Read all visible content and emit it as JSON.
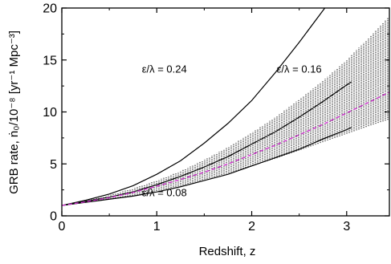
{
  "chart_data": {
    "type": "line",
    "xlabel": "Redshift,  z",
    "ylabel": "GRB rate,  ṅ₀/10⁻⁸ [yr⁻¹ Mpc⁻³]",
    "xlim": [
      0,
      3.45
    ],
    "ylim": [
      0,
      20
    ],
    "x_ticks": [
      0,
      1,
      2,
      3
    ],
    "y_ticks": [
      0,
      5,
      10,
      15,
      20
    ],
    "x_tick_labels": [
      "0",
      "1",
      "2",
      "3"
    ],
    "y_tick_labels": [
      "0",
      "5",
      "10",
      "15",
      "20"
    ],
    "grid": false,
    "series": [
      {
        "label": "ε/λ = 0.24",
        "color": "#000000",
        "style": "solid",
        "x": [
          0,
          0.25,
          0.5,
          0.75,
          1.0,
          1.25,
          1.5,
          1.75,
          2.0,
          2.25,
          2.5,
          2.77
        ],
        "y": [
          1.0,
          1.5,
          2.1,
          2.9,
          4.0,
          5.3,
          7.0,
          8.9,
          11.1,
          13.8,
          16.7,
          20.0
        ]
      },
      {
        "label": "ε/λ = 0.16",
        "color": "#000000",
        "style": "solid",
        "x": [
          0,
          0.25,
          0.5,
          0.75,
          1.0,
          1.25,
          1.5,
          1.75,
          2.0,
          2.25,
          2.5,
          2.75,
          3.0,
          3.05
        ],
        "y": [
          1.0,
          1.4,
          1.8,
          2.3,
          3.0,
          3.8,
          4.7,
          5.7,
          6.9,
          8.1,
          9.5,
          11.0,
          12.6,
          12.9
        ]
      },
      {
        "label": "ε/λ = 0.08",
        "color": "#000000",
        "style": "solid",
        "x": [
          0,
          0.25,
          0.5,
          0.75,
          1.0,
          1.25,
          1.5,
          1.75,
          2.0,
          2.25,
          2.5,
          2.75,
          3.0,
          3.05
        ],
        "y": [
          1.0,
          1.3,
          1.6,
          1.9,
          2.3,
          2.8,
          3.4,
          4.0,
          4.8,
          5.6,
          6.4,
          7.4,
          8.3,
          8.5
        ]
      },
      {
        "label": "",
        "color": "#cc33cc",
        "style": "dashed",
        "x": [
          0,
          0.25,
          0.5,
          0.75,
          1.0,
          1.25,
          1.5,
          1.75,
          2.0,
          2.25,
          2.5,
          2.75,
          3.0,
          3.25,
          3.45
        ],
        "y": [
          1.0,
          1.35,
          1.75,
          2.25,
          2.85,
          3.5,
          4.2,
          5.0,
          5.9,
          6.8,
          7.8,
          8.8,
          9.9,
          11.0,
          11.9
        ]
      }
    ],
    "band": {
      "x": [
        0,
        0.25,
        0.5,
        0.75,
        1.0,
        1.25,
        1.5,
        1.75,
        2.0,
        2.25,
        2.5,
        2.75,
        3.0,
        3.25,
        3.45
      ],
      "upper": [
        1.0,
        1.45,
        2.0,
        2.65,
        3.4,
        4.3,
        5.4,
        6.6,
        8.0,
        9.5,
        11.2,
        13.0,
        15.0,
        17.3,
        19.2
      ],
      "lower": [
        1.0,
        1.3,
        1.6,
        1.95,
        2.4,
        2.9,
        3.5,
        4.1,
        4.8,
        5.5,
        6.3,
        7.1,
        7.9,
        8.7,
        9.3
      ],
      "style": "vertical-hatch",
      "color": "#000000"
    },
    "annotations": [
      {
        "text": "ε/λ = 0.24",
        "x": 1.08,
        "y": 13.8
      },
      {
        "text": "ε/λ = 0.16",
        "x": 2.5,
        "y": 13.8
      },
      {
        "text": "ε/λ = 0.08",
        "x": 1.08,
        "y": 1.9
      }
    ]
  }
}
